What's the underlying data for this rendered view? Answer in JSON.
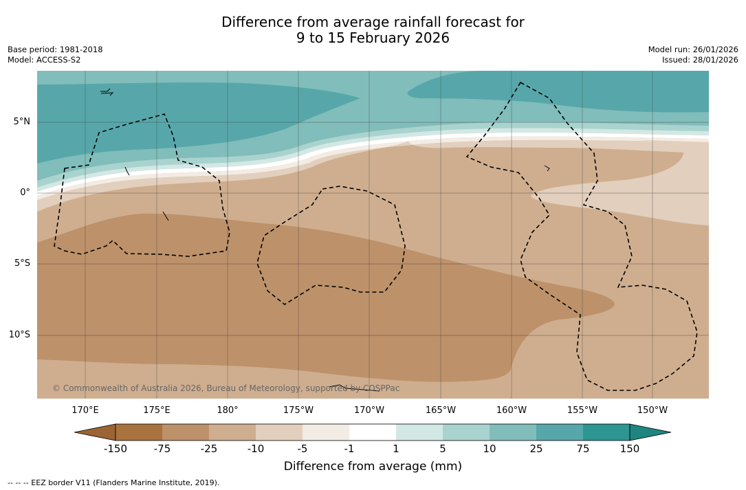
{
  "header": {
    "title_line1": "Difference from average rainfall forecast for",
    "title_line2": "9 to 15 February 2026",
    "base_period": "Base period: 1981-2018",
    "model": "Model: ACCESS-S2",
    "model_run": "Model run: 26/01/2026",
    "issued": "Issued: 28/01/2026"
  },
  "map": {
    "lat_labels": [
      "5°N",
      "0°",
      "5°S",
      "10°S"
    ],
    "lon_labels": [
      "170°E",
      "175°E",
      "180°",
      "175°W",
      "170°W",
      "165°W",
      "160°W",
      "155°W",
      "150°W"
    ],
    "copyright": "© Commonwealth of Australia 2026, Bureau of Meteorology, supported by COSPPac"
  },
  "legend": {
    "ticks": [
      "-150",
      "-75",
      "-25",
      "-10",
      "-5",
      "-1",
      "1",
      "5",
      "10",
      "25",
      "75",
      "150"
    ],
    "colors": [
      "#a9733f",
      "#bd916a",
      "#cfae8f",
      "#e2cfbd",
      "#f3ece4",
      "#ffffff",
      "#d2e8e5",
      "#a9d3cf",
      "#80bdbb",
      "#57a7aa",
      "#2d9592"
    ],
    "extend_low_color": "#9c6434",
    "extend_high_color": "#1f8580",
    "title": "Difference from average (mm)"
  },
  "footer": {
    "eez_note": "-- -- -- EEZ border V11 (Flanders Marine Institute, 2019)."
  }
}
